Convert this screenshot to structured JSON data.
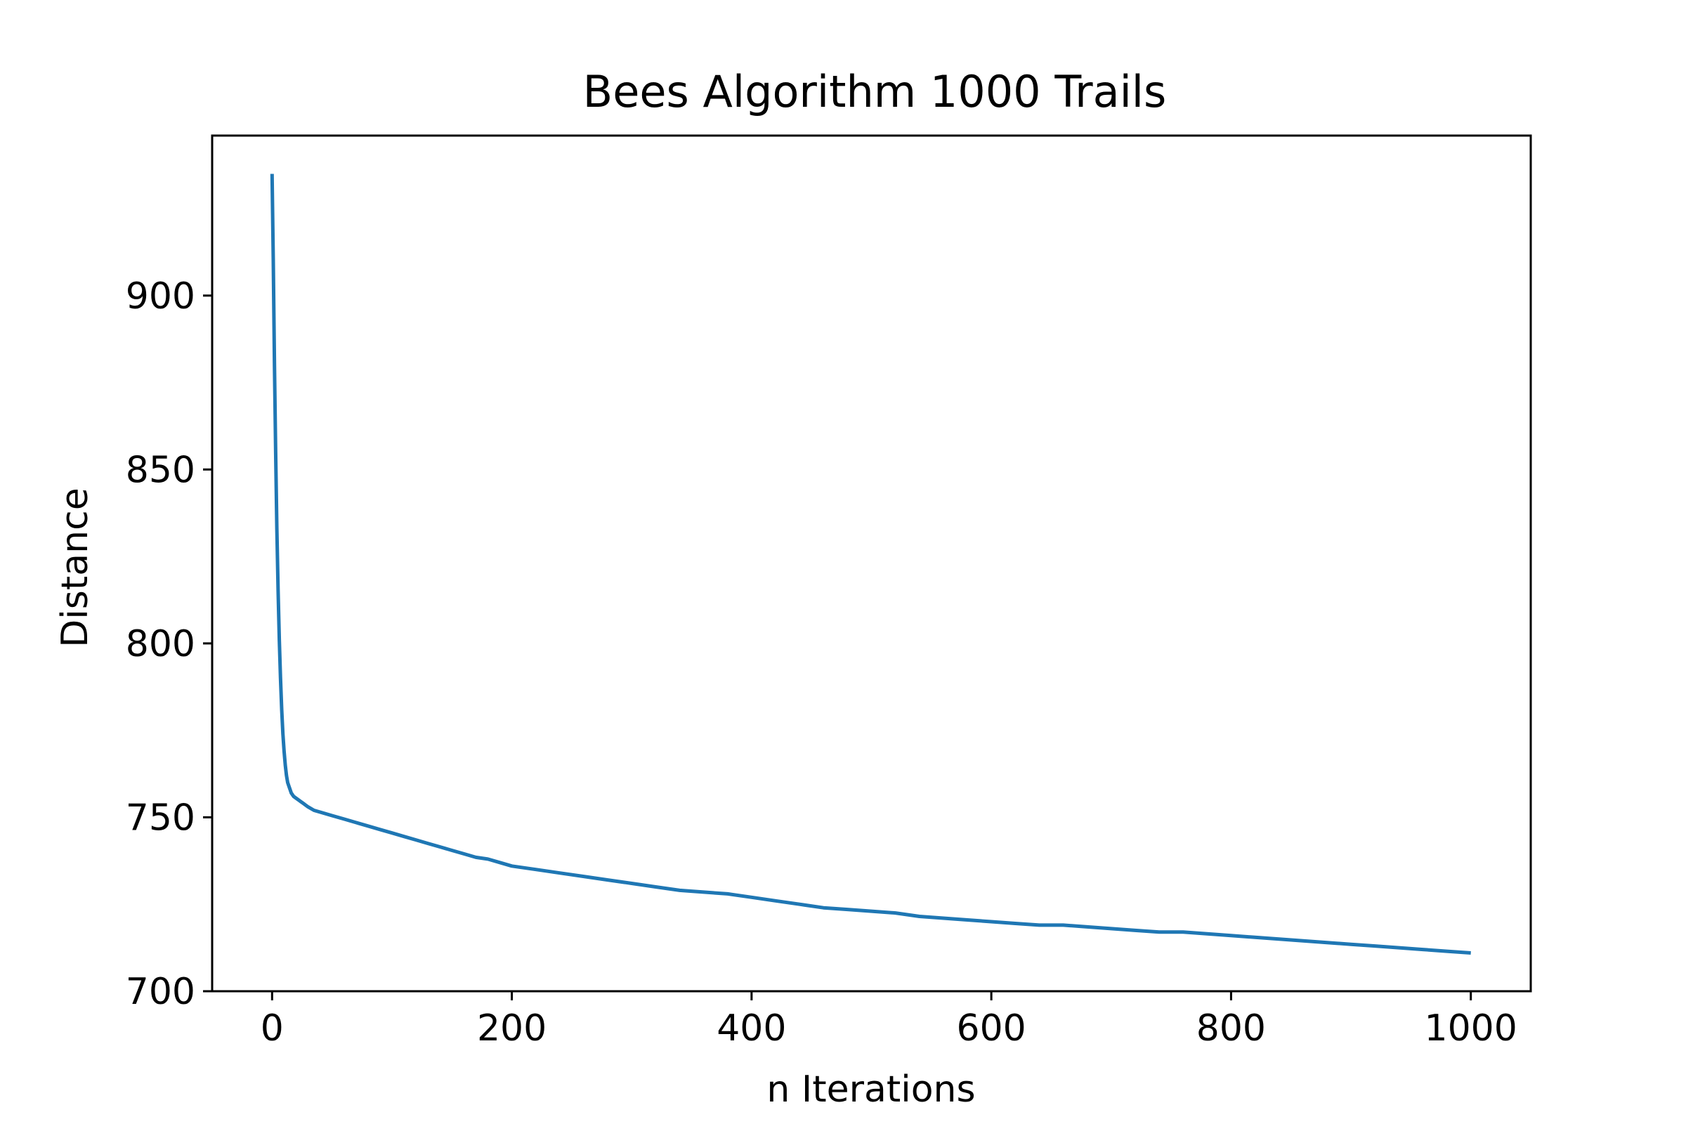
{
  "chart_data": {
    "type": "line",
    "title": "Bees Algorithm 1000 Trails",
    "xlabel": "n Iterations",
    "ylabel": "Distance",
    "xlim": [
      -50,
      1050
    ],
    "ylim": [
      700,
      946
    ],
    "x_ticks": [
      0,
      200,
      400,
      600,
      800,
      1000
    ],
    "y_ticks": [
      700,
      750,
      800,
      850,
      900
    ],
    "grid": false,
    "legend": "none",
    "series": [
      {
        "color": "#1f77b4",
        "x": [
          0,
          1,
          2,
          3,
          4,
          5,
          6,
          7,
          8,
          9,
          10,
          11,
          12,
          13,
          14,
          15,
          16,
          18,
          20,
          22,
          24,
          26,
          28,
          30,
          35,
          40,
          45,
          50,
          60,
          70,
          80,
          90,
          100,
          110,
          120,
          130,
          140,
          150,
          160,
          170,
          180,
          190,
          200,
          220,
          240,
          260,
          280,
          300,
          320,
          340,
          360,
          380,
          400,
          420,
          440,
          460,
          480,
          500,
          520,
          540,
          560,
          580,
          600,
          620,
          640,
          660,
          680,
          700,
          720,
          740,
          760,
          780,
          800,
          820,
          840,
          860,
          880,
          900,
          920,
          940,
          960,
          980,
          1000
        ],
        "y": [
          935,
          910,
          880,
          855,
          833,
          815,
          801,
          790,
          781,
          774,
          769,
          765,
          762,
          760,
          759,
          758,
          757,
          756,
          755.5,
          755,
          754.5,
          754,
          753.5,
          753,
          752,
          751.5,
          751,
          750.5,
          749.5,
          748.5,
          747.5,
          746.5,
          745.5,
          744.5,
          743.5,
          742.5,
          741.5,
          740.5,
          739.5,
          738.5,
          738,
          737,
          736,
          735,
          734,
          733,
          732,
          731,
          730,
          729,
          728.5,
          728,
          727,
          726,
          725,
          724,
          723.5,
          723,
          722.5,
          721.5,
          721,
          720.5,
          720,
          719.5,
          719,
          719,
          718.5,
          718,
          717.5,
          717,
          717,
          716.5,
          716,
          715.5,
          715,
          714.5,
          714,
          713.5,
          713,
          712.5,
          712,
          711.5,
          711
        ]
      }
    ]
  }
}
